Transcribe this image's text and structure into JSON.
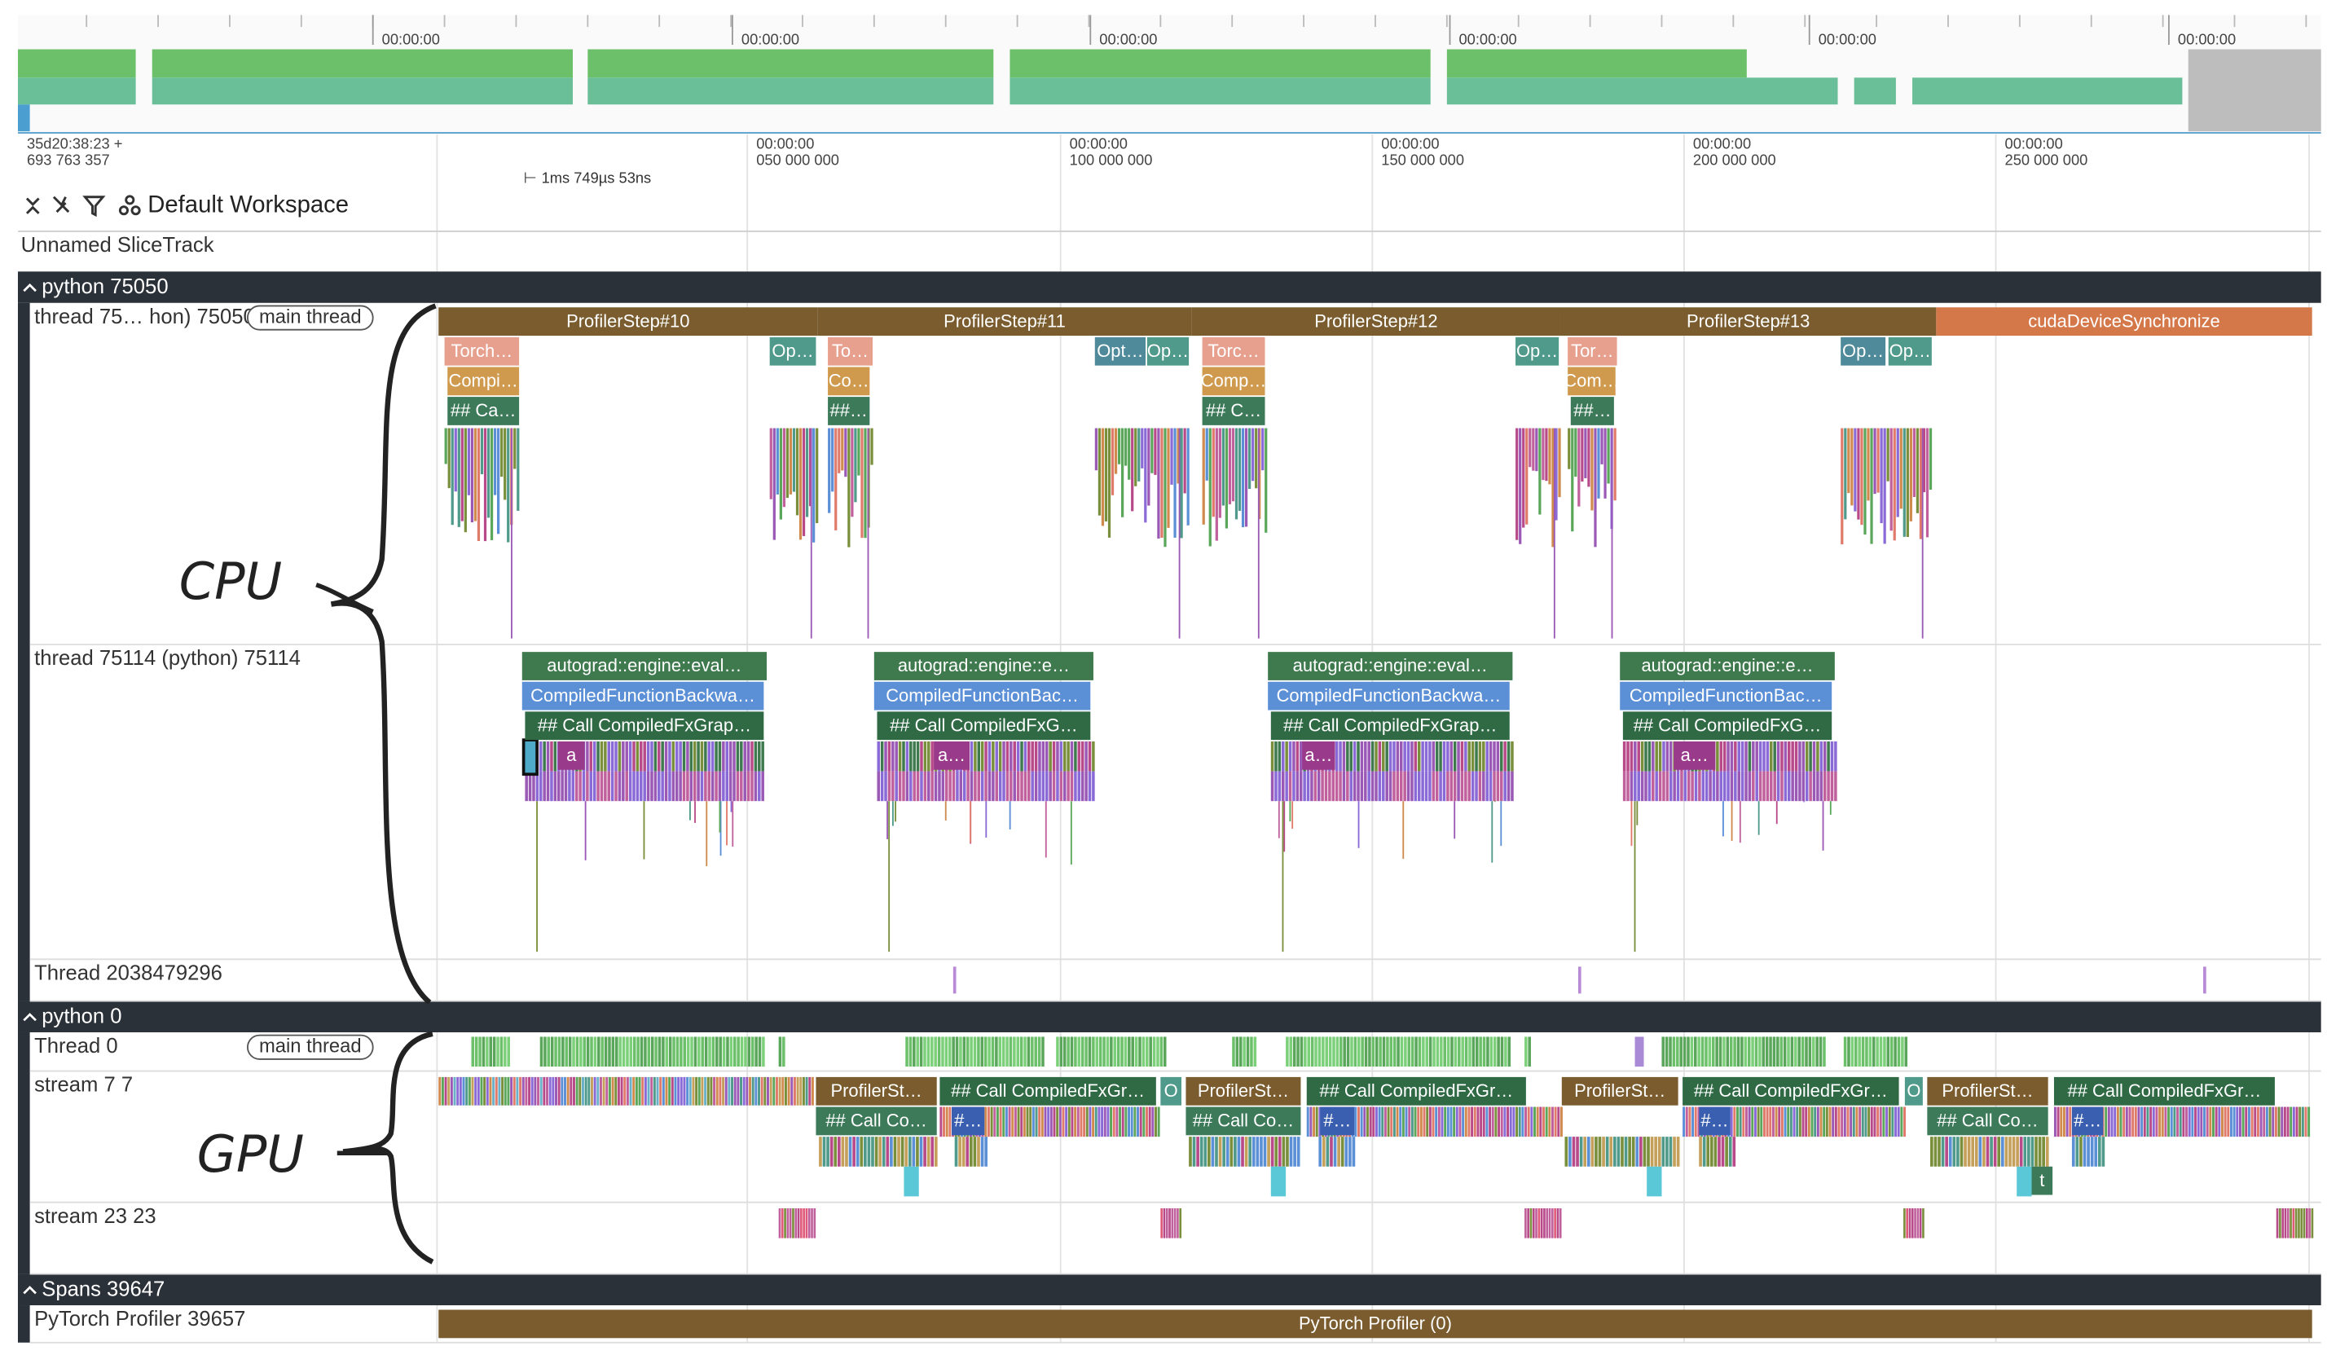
{
  "overview": {
    "ticks": [
      "00:00:00",
      "00:00:00",
      "00:00:00",
      "00:00:00",
      "00:00:00",
      "00:00:00"
    ]
  },
  "timeline": {
    "start": [
      "35d20:38:23 +",
      "693 763 357"
    ],
    "ticks": [
      [
        "00:00:00",
        "050 000 000"
      ],
      [
        "00:00:00",
        "100 000 000"
      ],
      [
        "00:00:00",
        "150 000 000"
      ],
      [
        "00:00:00",
        "200 000 000"
      ],
      [
        "00:00:00",
        "250 000 000"
      ]
    ],
    "span_label": "1ms 749µs 53ns"
  },
  "toolbar": {
    "workspace": "Default Workspace"
  },
  "tracks": {
    "unnamed": "Unnamed SliceTrack"
  },
  "groups": [
    {
      "title": "python 75050",
      "threads": [
        {
          "name": "thread 75… hon) 75050",
          "chip": "main thread",
          "slices": [
            [
              "ProfilerStep#10",
              "ProfilerStep#11",
              "ProfilerStep#12",
              "ProfilerStep#13",
              "cudaDeviceSynchronize"
            ],
            [
              "Torch…",
              "Op…",
              "To…",
              "Opt…",
              "Op…",
              "Torc…",
              "Op…",
              "Tor…",
              "Op…",
              "Op…"
            ],
            [
              "Compi…",
              "Co…",
              "Comp…",
              "Com…"
            ],
            [
              "## Ca…",
              "##…",
              "## C…",
              "##…"
            ]
          ]
        },
        {
          "name": "thread 75114 (python) 75114",
          "slices": [
            [
              "autograd::engine::eval…",
              "autograd::engine::e…",
              "autograd::engine::eval…",
              "autograd::engine::e…"
            ],
            [
              "CompiledFunctionBackwa…",
              "CompiledFunctionBac…",
              "CompiledFunctionBackwa…",
              "CompiledFunctionBac…"
            ],
            [
              "## Call CompiledFxGrap…",
              "## Call CompiledFxG…",
              "## Call CompiledFxGrap…",
              "## Call CompiledFxG…"
            ],
            [
              "a",
              "a…",
              "a…",
              "a…"
            ]
          ]
        },
        {
          "name": "Thread 2038479296"
        }
      ]
    },
    {
      "title": "python 0",
      "threads": [
        {
          "name": "Thread 0",
          "chip": "main thread"
        },
        {
          "name": "stream 7 7",
          "slices": [
            [
              "ProfilerSt…",
              "## Call CompiledFxGr…",
              "O",
              "ProfilerSt…",
              "## Call CompiledFxGr…",
              "ProfilerSt…",
              "## Call CompiledFxGr…",
              "O",
              "ProfilerSt…",
              "## Call CompiledFxGr…"
            ],
            [
              "## Call Co…",
              "#…",
              "## Call Co…",
              "#…",
              "#…",
              "## Call Co…",
              "#…"
            ],
            [],
            [
              "t"
            ]
          ]
        },
        {
          "name": "stream 23 23"
        }
      ]
    },
    {
      "title": "Spans 39647",
      "threads": [
        {
          "name": "PyTorch Profiler 39657",
          "slices": [
            [
              "PyTorch Profiler (0)"
            ]
          ]
        }
      ]
    }
  ],
  "annotations": {
    "cpu": "CPU",
    "gpu": "GPU"
  }
}
